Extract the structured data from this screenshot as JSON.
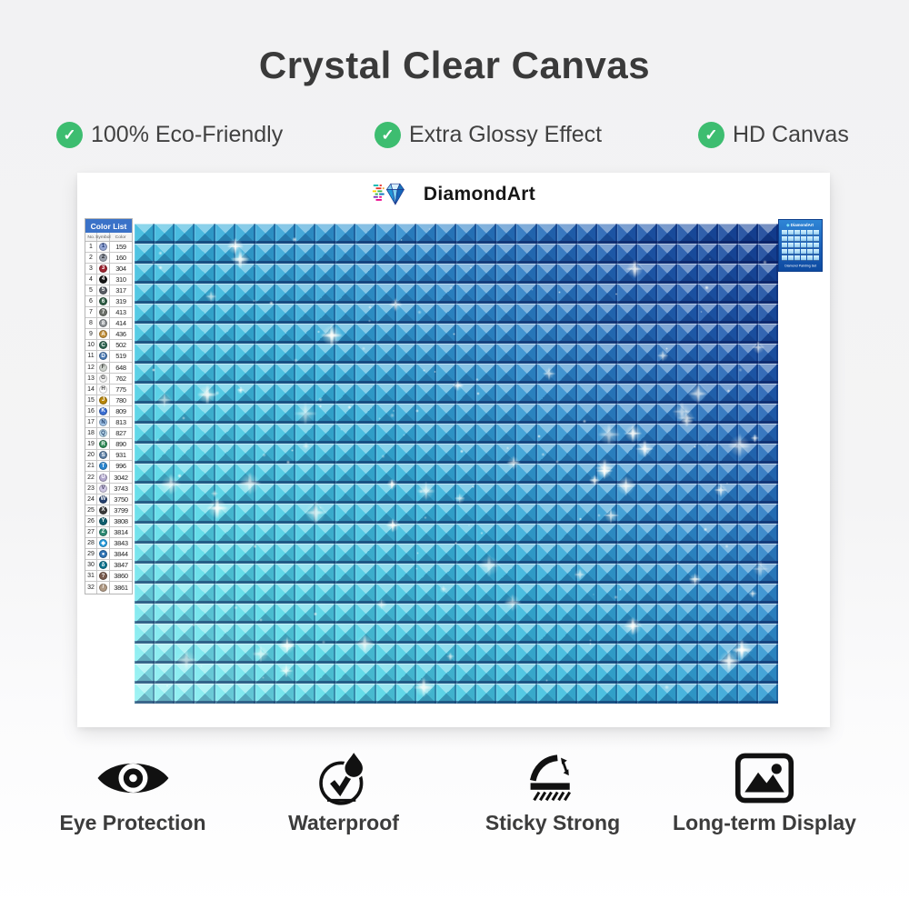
{
  "header": {
    "title": "Crystal Clear Canvas",
    "check_color": "#3dbd70",
    "features": [
      "100% Eco-Friendly",
      "Extra Glossy Effect",
      "HD Canvas"
    ]
  },
  "product": {
    "brand": "DiamondArt",
    "color_list": {
      "title": "Color List",
      "columns": [
        "No.",
        "Symbol",
        "Color"
      ],
      "rows": [
        {
          "no": "1",
          "symbol": "1",
          "code": "159",
          "bg": "#93a5d4",
          "fg": "#1d3570"
        },
        {
          "no": "2",
          "symbol": "2",
          "code": "160",
          "bg": "#9aa0ab",
          "fg": "#23262b"
        },
        {
          "no": "3",
          "symbol": "3",
          "code": "304",
          "bg": "#9e2430",
          "fg": "#ffffff"
        },
        {
          "no": "4",
          "symbol": "4",
          "code": "310",
          "bg": "#141414",
          "fg": "#ffffff"
        },
        {
          "no": "5",
          "symbol": "5",
          "code": "317",
          "bg": "#585d64",
          "fg": "#ffffff"
        },
        {
          "no": "6",
          "symbol": "6",
          "code": "319",
          "bg": "#2f5e45",
          "fg": "#ffffff"
        },
        {
          "no": "7",
          "symbol": "7",
          "code": "413",
          "bg": "#6c7069",
          "fg": "#ffffff"
        },
        {
          "no": "8",
          "symbol": "8",
          "code": "414",
          "bg": "#8d9296",
          "fg": "#ffffff"
        },
        {
          "no": "9",
          "symbol": "A",
          "code": "436",
          "bg": "#c2913c",
          "fg": "#ffffff"
        },
        {
          "no": "10",
          "symbol": "C",
          "code": "502",
          "bg": "#2f6652",
          "fg": "#ffffff"
        },
        {
          "no": "11",
          "symbol": "D",
          "code": "519",
          "bg": "#4a7ab5",
          "fg": "#ffffff"
        },
        {
          "no": "12",
          "symbol": "F",
          "code": "648",
          "bg": "#ccd1cb",
          "fg": "#40443f"
        },
        {
          "no": "13",
          "symbol": "G",
          "code": "762",
          "bg": "#f2f2f2",
          "fg": "#4a4a4a"
        },
        {
          "no": "14",
          "symbol": "H",
          "code": "775",
          "bg": "#ffffff",
          "fg": "#4a4a4a"
        },
        {
          "no": "15",
          "symbol": "J",
          "code": "780",
          "bg": "#b8860b",
          "fg": "#ffffff"
        },
        {
          "no": "16",
          "symbol": "K",
          "code": "809",
          "bg": "#3b6fd4",
          "fg": "#ffffff"
        },
        {
          "no": "17",
          "symbol": "N",
          "code": "813",
          "bg": "#9fc3e8",
          "fg": "#1d3a66"
        },
        {
          "no": "18",
          "symbol": "Q",
          "code": "827",
          "bg": "#bcdcee",
          "fg": "#1d3a66"
        },
        {
          "no": "19",
          "symbol": "R",
          "code": "890",
          "bg": "#2e8b57",
          "fg": "#ffffff"
        },
        {
          "no": "20",
          "symbol": "S",
          "code": "931",
          "bg": "#5b7fa6",
          "fg": "#ffffff"
        },
        {
          "no": "21",
          "symbol": "T",
          "code": "996",
          "bg": "#2b87d0",
          "fg": "#ffffff"
        },
        {
          "no": "22",
          "symbol": "U",
          "code": "3042",
          "bg": "#b3a8cf",
          "fg": "#ffffff"
        },
        {
          "no": "23",
          "symbol": "V",
          "code": "3743",
          "bg": "#cfc8e4",
          "fg": "#4a4466"
        },
        {
          "no": "24",
          "symbol": "W",
          "code": "3750",
          "bg": "#24406e",
          "fg": "#ffffff"
        },
        {
          "no": "25",
          "symbol": "X",
          "code": "3799",
          "bg": "#3a3a3a",
          "fg": "#ffffff"
        },
        {
          "no": "26",
          "symbol": "Y",
          "code": "3808",
          "bg": "#0f5e6e",
          "fg": "#ffffff"
        },
        {
          "no": "27",
          "symbol": "Z",
          "code": "3814",
          "bg": "#2e8b74",
          "fg": "#ffffff"
        },
        {
          "no": "28",
          "symbol": "◆",
          "code": "3843",
          "bg": "#2a9fe0",
          "fg": "#ffffff"
        },
        {
          "no": "29",
          "symbol": "●",
          "code": "3844",
          "bg": "#2f74b5",
          "fg": "#ffffff"
        },
        {
          "no": "30",
          "symbol": "δ",
          "code": "3847",
          "bg": "#0e7490",
          "fg": "#ffffff"
        },
        {
          "no": "31",
          "symbol": "?",
          "code": "3860",
          "bg": "#7a5c4e",
          "fg": "#ffffff"
        },
        {
          "no": "32",
          "symbol": "/",
          "code": "3861",
          "bg": "#b09a85",
          "fg": "#ffffff"
        }
      ]
    },
    "canvas_grid": {
      "columns": 32,
      "rows": 24,
      "sparkle_count": 58,
      "dot_count": 90
    },
    "mini_pack": {
      "brand": "DiamondArt",
      "caption": "Diamond Painting Set"
    }
  },
  "bottom_features": [
    {
      "label": "Eye Protection"
    },
    {
      "label": "Waterproof"
    },
    {
      "label": "Sticky Strong"
    },
    {
      "label": "Long-term Display"
    }
  ]
}
